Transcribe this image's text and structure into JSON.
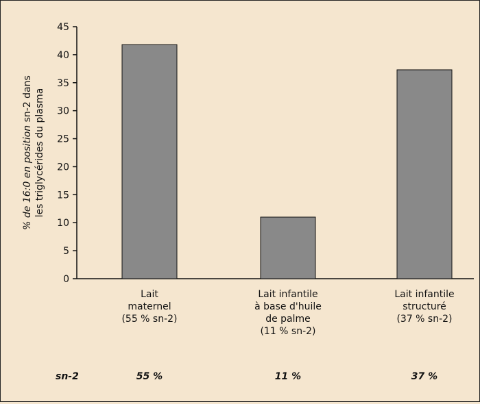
{
  "chart_data": {
    "type": "bar",
    "categories": [
      [
        "Lait",
        "maternel",
        "(55 % sn-2)"
      ],
      [
        "Lait infantile",
        "à base d'huile",
        "de palme",
        "(11 % sn-2)"
      ],
      [
        "Lait infantile",
        "structuré",
        "(37 % sn-2)"
      ]
    ],
    "values": [
      41.8,
      11.0,
      37.3
    ],
    "ylabel_line1": [
      {
        "text": "% de 16:0 en position ",
        "italic": true
      },
      {
        "text": "sn-2 dans",
        "italic": false
      }
    ],
    "ylabel_line2": "les triglycérides du plasma",
    "ylim": [
      0,
      45
    ],
    "yticks": [
      0,
      5,
      10,
      15,
      20,
      25,
      30,
      35,
      40,
      45
    ],
    "grid": false,
    "bar_color": "#898989"
  },
  "footer": {
    "label": "sn-2",
    "values": [
      "55 %",
      "11 %",
      "37 %"
    ]
  },
  "colors": {
    "background": "#f5e6cf",
    "bar": "#898989",
    "axis": "#111111"
  }
}
